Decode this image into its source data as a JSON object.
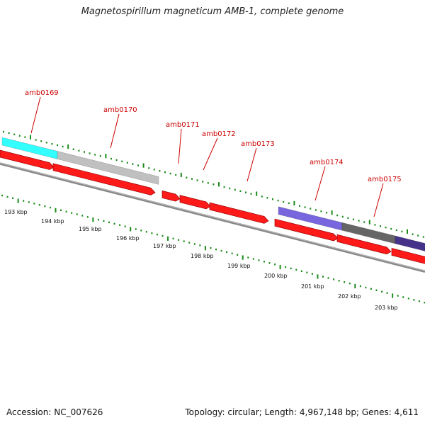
{
  "title": "Magnetospirillum magneticum AMB-1, complete genome",
  "footer": {
    "accession": "Accession: NC_007626",
    "summary": "Topology: circular; Length: 4,967,148 bp; Genes: 4,611"
  },
  "colors": {
    "forward_gene": "#ff1a1a",
    "gene_label": "#cc0000",
    "tick": "#1a8a1a",
    "backbone": "#888888"
  },
  "gene_labels": [
    "amb0169",
    "amb0170",
    "amb0171",
    "amb0172",
    "amb0173",
    "amb0174",
    "amb0175"
  ],
  "kbp_labels": [
    "193 kbp",
    "194 kbp",
    "195 kbp",
    "196 kbp",
    "197 kbp",
    "198 kbp",
    "199 kbp",
    "200 kbp",
    "201 kbp",
    "202 kbp",
    "203 kbp"
  ],
  "cog_colors": [
    "#33ffff",
    "#c0c0c0",
    "#7766dd",
    "#666666",
    "#443388"
  ]
}
